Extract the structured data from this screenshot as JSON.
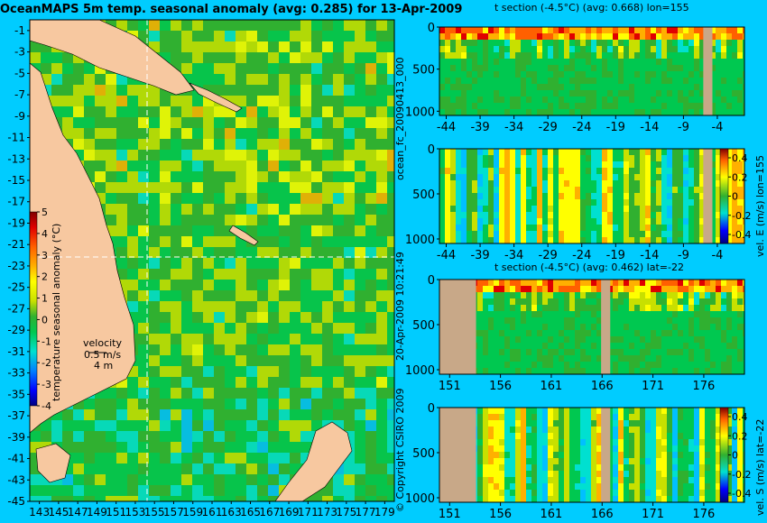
{
  "chart_data": [
    {
      "type": "heatmap",
      "title": "OceanMAPS 5m temp. seasonal anomaly (avg: 0.285) for 13-Apr-2009",
      "x_ticks": [
        "143",
        "145",
        "147",
        "149",
        "151",
        "153",
        "155",
        "157",
        "159",
        "161",
        "163",
        "165",
        "167",
        "169",
        "171",
        "173",
        "175",
        "177",
        "179"
      ],
      "y_ticks": [
        "-1",
        "-3",
        "-5",
        "-7",
        "-9",
        "-11",
        "-13",
        "-15",
        "-17",
        "-19",
        "-21",
        "-23",
        "-25",
        "-27",
        "-29",
        "-31",
        "-33",
        "-35",
        "-37",
        "-39",
        "-41",
        "-43",
        "-45"
      ],
      "xlim": [
        142,
        180
      ],
      "ylim": [
        -45,
        0
      ],
      "colorbar": {
        "label": "temperature seasonal anomaly (°C)",
        "ticks": [
          "5",
          "4",
          "3",
          "2",
          "1",
          "0",
          "-1",
          "-2",
          "-3",
          "-4"
        ],
        "range": [
          -4,
          5
        ]
      },
      "velocity_legend": {
        "title": "velocity",
        "line1": "0.5 m/s",
        "line2": "4 m"
      },
      "crosshair": {
        "lon": 155,
        "lat": -22
      }
    },
    {
      "type": "heatmap",
      "title": "t section (-4.5°C) (avg: 0.668) lon=155",
      "x_ticks": [
        "-44",
        "-39",
        "-34",
        "-29",
        "-24",
        "-19",
        "-14",
        "-9",
        "-4"
      ],
      "xlim": [
        -45,
        0
      ],
      "y_ticks": [
        "0",
        "500",
        "1000"
      ],
      "ylim": [
        0,
        1050
      ],
      "side_text": "ocean_fc_20090413_000"
    },
    {
      "type": "heatmap",
      "title": "",
      "x_ticks": [
        "-44",
        "-39",
        "-34",
        "-29",
        "-24",
        "-19",
        "-14",
        "-9",
        "-4"
      ],
      "xlim": [
        -45,
        0
      ],
      "y_ticks": [
        "0",
        "500",
        "1000"
      ],
      "ylim": [
        0,
        1050
      ],
      "colorbar": {
        "label": "vel. E (m/s) lon=155",
        "ticks": [
          "0.4",
          "0.2",
          "0",
          "-0.2",
          "-0.4"
        ],
        "range": [
          -0.4,
          0.4
        ]
      }
    },
    {
      "type": "heatmap",
      "title": "t section (-4.5°C) (avg: 0.462) lat=-22",
      "x_ticks": [
        "151",
        "156",
        "161",
        "166",
        "171",
        "176"
      ],
      "xlim": [
        150,
        180
      ],
      "y_ticks": [
        "0",
        "500",
        "1000"
      ],
      "ylim": [
        0,
        1050
      ],
      "side_text": "20-Apr-2009 10:21:49"
    },
    {
      "type": "heatmap",
      "title": "",
      "x_ticks": [
        "151",
        "156",
        "161",
        "166",
        "171",
        "176"
      ],
      "xlim": [
        150,
        180
      ],
      "y_ticks": [
        "0",
        "500",
        "1000"
      ],
      "ylim": [
        0,
        1050
      ],
      "side_text": "© Copyright CSIRO 2009",
      "colorbar": {
        "label": "vel. S (m/s) lat=-22",
        "ticks": [
          "0.4",
          "0.2",
          "0",
          "-0.2",
          "-0.4"
        ],
        "range": [
          -0.4,
          0.4
        ]
      }
    }
  ],
  "palette": [
    "#000080",
    "#0000ff",
    "#0080ff",
    "#00c0ff",
    "#00e0d0",
    "#00c850",
    "#30b030",
    "#c8e000",
    "#ffff00",
    "#ffb000",
    "#ff6000",
    "#e00000",
    "#800000"
  ],
  "land_color": "#f7c8a0",
  "section_land_color": "#c8a888",
  "background_color": "#00ccff"
}
